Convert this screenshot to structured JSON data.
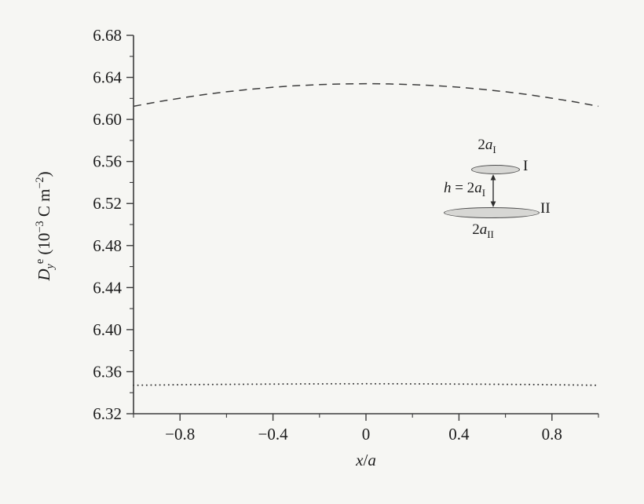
{
  "figure": {
    "background": "#f6f6f3",
    "axis_color": "#3c3c3c",
    "curve_color": "#3c3c3c",
    "text_color": "#1c1c1c"
  },
  "chart_data": {
    "type": "line",
    "title": "",
    "xlabel": "x/a",
    "ylabel": "D_y^e (10^-3 C m^-2)",
    "xlabel_parts": [
      {
        "t": "x",
        "s": "i"
      },
      {
        "t": "/",
        "s": ""
      },
      {
        "t": "a",
        "s": "i"
      }
    ],
    "ylabel_parts": [
      {
        "t": "D",
        "s": "i"
      },
      {
        "t": "y",
        "s": "subi"
      },
      {
        "t": "e",
        "s": "sup"
      },
      {
        "t": " (10",
        "s": ""
      },
      {
        "t": "−3",
        "s": "sup"
      },
      {
        "t": " C m",
        "s": ""
      },
      {
        "t": "−2",
        "s": "sup"
      },
      {
        "t": ")",
        "s": ""
      }
    ],
    "xlim": [
      -1,
      1
    ],
    "ylim": [
      6.32,
      6.68
    ],
    "grid": false,
    "legend": "none",
    "x_major_ticks": [
      -0.8,
      -0.4,
      0,
      0.4,
      0.8
    ],
    "x_tick_labels": [
      "−0.8",
      "−0.4",
      "0",
      "0.4",
      "0.8"
    ],
    "x_minor_ticks": [
      -1,
      -0.6,
      -0.2,
      0.2,
      0.6,
      1
    ],
    "y_major_ticks": [
      6.32,
      6.36,
      6.4,
      6.44,
      6.48,
      6.52,
      6.56,
      6.6,
      6.64,
      6.68
    ],
    "y_tick_labels": [
      "6.32",
      "6.36",
      "6.40",
      "6.44",
      "6.48",
      "6.52",
      "6.56",
      "6.60",
      "6.64",
      "6.68"
    ],
    "y_minor_ticks": [
      6.34,
      6.38,
      6.42,
      6.46,
      6.5,
      6.54,
      6.58,
      6.62,
      6.66
    ],
    "series": [
      {
        "name": "upper-dashed",
        "line_style": "dashed",
        "x": [
          -1,
          -0.9,
          -0.8,
          -0.7,
          -0.6,
          -0.5,
          -0.4,
          -0.3,
          -0.2,
          -0.1,
          0,
          0.1,
          0.2,
          0.3,
          0.4,
          0.5,
          0.6,
          0.7,
          0.8,
          0.9,
          1
        ],
        "y": [
          6.6125,
          6.6166,
          6.6202,
          6.6235,
          6.6263,
          6.6286,
          6.6306,
          6.6321,
          6.6331,
          6.6338,
          6.634,
          6.6338,
          6.6331,
          6.6321,
          6.6306,
          6.6286,
          6.6263,
          6.6235,
          6.6202,
          6.6166,
          6.6125
        ]
      },
      {
        "name": "lower-dotted",
        "line_style": "dotted",
        "x": [
          -1,
          -0.75,
          -0.5,
          -0.25,
          0,
          0.25,
          0.5,
          0.75,
          1
        ],
        "y": [
          6.347,
          6.3477,
          6.3481,
          6.3484,
          6.3485,
          6.3484,
          6.3481,
          6.3477,
          6.347
        ]
      }
    ]
  },
  "inset": {
    "top_label": [
      {
        "t": "2",
        "s": ""
      },
      {
        "t": "a",
        "s": "i"
      },
      {
        "t": "I",
        "s": "sub"
      }
    ],
    "disk1_tag": "I",
    "arrow_label": [
      {
        "t": "h",
        "s": "i"
      },
      {
        "t": " = 2",
        "s": ""
      },
      {
        "t": "a",
        "s": "i"
      },
      {
        "t": "I",
        "s": "sub"
      }
    ],
    "disk2_tag": "II",
    "bottom_label": [
      {
        "t": "2",
        "s": ""
      },
      {
        "t": "a",
        "s": "i"
      },
      {
        "t": "II",
        "s": "sub"
      }
    ],
    "disk_fill": "#d7d7d4",
    "disk_stroke": "#4d4d4d"
  }
}
